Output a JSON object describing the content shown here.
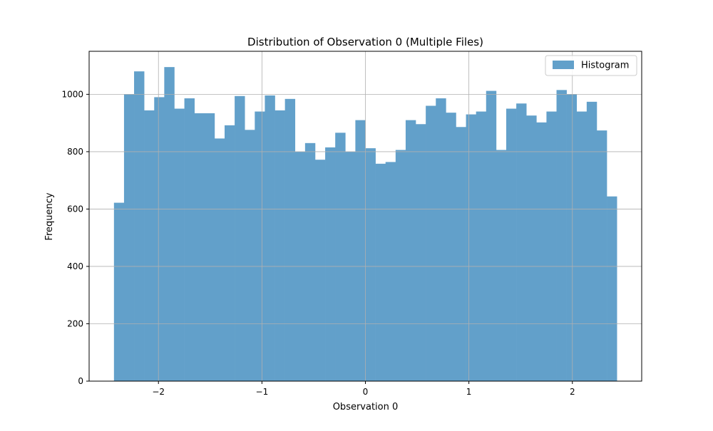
{
  "chart_data": {
    "type": "bar",
    "title": "Distribution of Observation 0 (Multiple Files)",
    "xlabel": "Observation 0",
    "ylabel": "Frequency",
    "xlim": [
      -2.67,
      2.67
    ],
    "ylim": [
      0,
      1150
    ],
    "grid": true,
    "legend": {
      "placement": "top-right",
      "entries": [
        "Histogram"
      ]
    },
    "bar_color": "#62a0ca",
    "x_ticks": [
      {
        "value": -2,
        "label": "−2"
      },
      {
        "value": -1,
        "label": "−1"
      },
      {
        "value": 0,
        "label": "0"
      },
      {
        "value": 1,
        "label": "1"
      },
      {
        "value": 2,
        "label": "2"
      }
    ],
    "y_ticks": [
      {
        "value": 0,
        "label": "0"
      },
      {
        "value": 200,
        "label": "200"
      },
      {
        "value": 400,
        "label": "400"
      },
      {
        "value": 600,
        "label": "600"
      },
      {
        "value": 800,
        "label": "800"
      },
      {
        "value": 1000,
        "label": "1000"
      }
    ],
    "series": [
      {
        "name": "Histogram",
        "bin_start": -2.43,
        "bin_width": 0.0972,
        "values": [
          622,
          1000,
          1080,
          944,
          990,
          1095,
          950,
          986,
          934,
          934,
          846,
          892,
          994,
          876,
          940,
          996,
          944,
          984,
          800,
          830,
          772,
          815,
          866,
          800,
          910,
          812,
          758,
          764,
          806,
          910,
          896,
          960,
          986,
          936,
          886,
          930,
          940,
          1012,
          806,
          950,
          968,
          926,
          902,
          940,
          1015,
          1000,
          940,
          974,
          874,
          644
        ]
      }
    ]
  }
}
